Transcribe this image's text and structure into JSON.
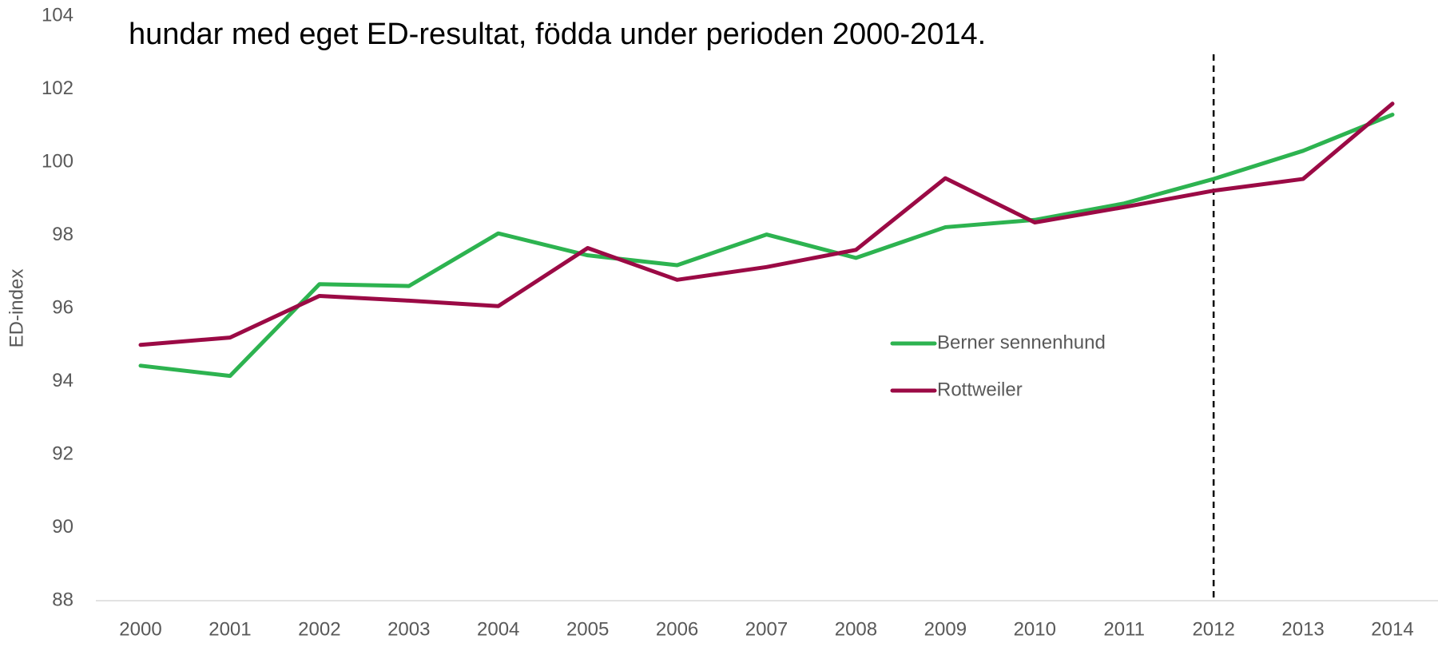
{
  "chart_data": {
    "type": "line",
    "title": "hundar med eget ED-resultat, födda under perioden 2000-2014.",
    "y_label": "ED-index",
    "categories": [
      "2000",
      "2001",
      "2002",
      "2003",
      "2004",
      "2005",
      "2006",
      "2007",
      "2008",
      "2009",
      "2010",
      "2011",
      "2012",
      "2013",
      "2014"
    ],
    "series": [
      {
        "name": "Berner sennenhund",
        "color": "#2db350",
        "values": [
          94.43,
          94.15,
          96.66,
          96.61,
          98.05,
          97.45,
          97.18,
          98.02,
          97.38,
          98.22,
          98.42,
          98.87,
          99.54,
          100.31,
          101.3
        ]
      },
      {
        "name": "Rottweiler",
        "color": "#9b0a45",
        "values": [
          95.0,
          95.2,
          96.34,
          96.21,
          96.06,
          97.65,
          96.78,
          97.13,
          97.6,
          99.56,
          98.35,
          98.77,
          99.22,
          99.54,
          101.6
        ]
      }
    ],
    "ylim": [
      88,
      104
    ],
    "yticks": [
      88,
      90,
      92,
      94,
      96,
      98,
      100,
      102,
      104
    ],
    "grid": false,
    "vline_category": "2012"
  }
}
